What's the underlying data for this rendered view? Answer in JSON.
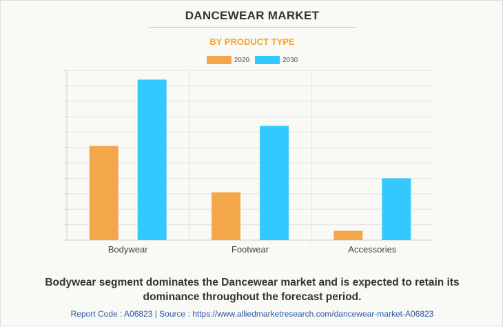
{
  "chart_data": {
    "type": "bar",
    "title": "DANCEWEAR MARKET",
    "subtitle": "BY PRODUCT TYPE",
    "categories": [
      "Bodywear",
      "Footwear",
      "Accessories"
    ],
    "series": [
      {
        "name": "2020",
        "color": "#f4a74a",
        "values": [
          6.1,
          3.1,
          0.6
        ]
      },
      {
        "name": "2030",
        "color": "#33c9ff",
        "values": [
          10.4,
          7.4,
          4.0
        ]
      }
    ],
    "ylim": [
      0,
      11
    ],
    "yticks": 11,
    "grid": true,
    "legend": "top-center",
    "xlabel": "",
    "ylabel": ""
  },
  "caption": "Bodywear segment dominates the Dancewear market and is expected to retain its dominance throughout the forecast period.",
  "footer": "Report Code : A06823  |  Source : https://www.alliedmarketresearch.com/dancewear-market-A06823"
}
